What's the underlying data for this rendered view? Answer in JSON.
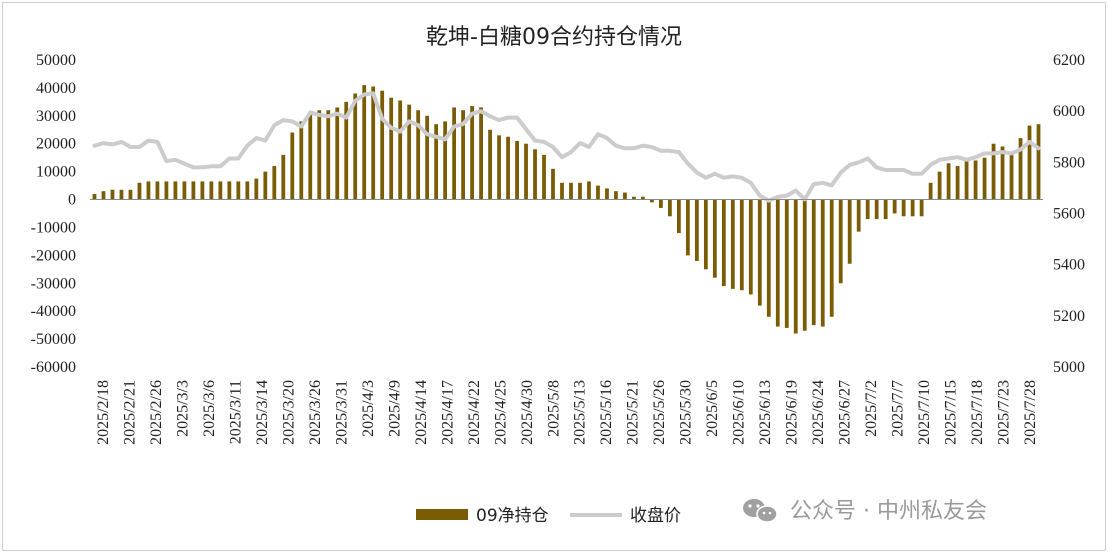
{
  "chart_data": {
    "type": "bar+line",
    "title": "乾坤-白糖09合约持仓情况",
    "left_axis": {
      "min": -60000,
      "max": 50000,
      "step": 10000,
      "ticks": [
        "50000",
        "40000",
        "30000",
        "20000",
        "10000",
        "0",
        "-10000",
        "-20000",
        "-30000",
        "-40000",
        "-50000",
        "-60000"
      ]
    },
    "right_axis": {
      "min": 5000,
      "max": 6200,
      "step": 200,
      "ticks": [
        "6200",
        "6000",
        "5800",
        "5600",
        "5400",
        "5200",
        "5000"
      ]
    },
    "x_tick_labels": [
      "2025/2/18",
      "2025/2/21",
      "2025/2/26",
      "2025/3/3",
      "2025/3/6",
      "2025/3/11",
      "2025/3/14",
      "2025/3/20",
      "2025/3/26",
      "2025/3/31",
      "2025/4/3",
      "2025/4/9",
      "2025/4/14",
      "2025/4/17",
      "2025/4/22",
      "2025/4/25",
      "2025/4/30",
      "2025/5/8",
      "2025/5/13",
      "2025/5/16",
      "2025/5/21",
      "2025/5/26",
      "2025/5/30",
      "2025/6/5",
      "2025/6/10",
      "2025/6/13",
      "2025/6/19",
      "2025/6/24",
      "2025/6/27",
      "2025/7/2",
      "2025/7/7",
      "2025/7/10",
      "2025/7/15",
      "2025/7/18",
      "2025/7/23",
      "2025/7/28"
    ],
    "series": [
      {
        "name": "09净持仓",
        "type": "bar",
        "color": "#7a5c05",
        "axis": "left",
        "values": [
          2000,
          3000,
          3500,
          3500,
          3500,
          6000,
          6500,
          6500,
          6500,
          6500,
          6500,
          6500,
          6500,
          6500,
          6500,
          6500,
          6500,
          6500,
          7500,
          10000,
          12000,
          16000,
          24000,
          28000,
          31000,
          32000,
          32000,
          33000,
          35000,
          38000,
          41000,
          40500,
          39000,
          36500,
          35500,
          34000,
          32000,
          30000,
          27000,
          28000,
          33000,
          32000,
          33500,
          33000,
          25000,
          23000,
          22500,
          21000,
          20000,
          18000,
          16000,
          11000,
          6000,
          6000,
          6000,
          6500,
          5000,
          4000,
          3000,
          2500,
          1000,
          1000,
          -1000,
          -3000,
          -6000,
          -12000,
          -20000,
          -22000,
          -25000,
          -28000,
          -31000,
          -32000,
          -32500,
          -34000,
          -38000,
          -42000,
          -45500,
          -46000,
          -48000,
          -47000,
          -45000,
          -45500,
          -42000,
          -30000,
          -23000,
          -11500,
          -7000,
          -7000,
          -7000,
          -5000,
          -6000,
          -6000,
          -6000,
          6000,
          10000,
          13000,
          12000,
          14000,
          14000,
          15000,
          20000,
          19000,
          17000,
          22000,
          26500,
          27000
        ]
      },
      {
        "name": "收盘价",
        "type": "line",
        "color": "#cccccc",
        "axis": "right",
        "values": [
          5865,
          5875,
          5870,
          5880,
          5860,
          5860,
          5885,
          5880,
          5805,
          5810,
          5795,
          5780,
          5780,
          5785,
          5785,
          5815,
          5815,
          5865,
          5895,
          5885,
          5945,
          5965,
          5960,
          5940,
          5995,
          5985,
          5980,
          5990,
          5975,
          6040,
          6065,
          6070,
          5970,
          5935,
          5920,
          5960,
          5945,
          5910,
          5900,
          5890,
          5940,
          5950,
          5990,
          6000,
          5980,
          5965,
          5975,
          5975,
          5930,
          5885,
          5880,
          5860,
          5820,
          5840,
          5875,
          5860,
          5910,
          5895,
          5865,
          5855,
          5855,
          5865,
          5860,
          5845,
          5845,
          5840,
          5795,
          5760,
          5740,
          5755,
          5740,
          5745,
          5740,
          5720,
          5670,
          5650,
          5665,
          5670,
          5690,
          5655,
          5715,
          5720,
          5710,
          5760,
          5790,
          5800,
          5815,
          5780,
          5770,
          5770,
          5770,
          5755,
          5755,
          5790,
          5810,
          5815,
          5820,
          5810,
          5820,
          5835,
          5835,
          5840,
          5835,
          5850,
          5880,
          5855
        ]
      }
    ],
    "legend": [
      {
        "label": "09净持仓",
        "kind": "bar"
      },
      {
        "label": "收盘价",
        "kind": "line"
      }
    ]
  },
  "watermark": {
    "text": "公众号 · 中州私友会",
    "icon": "wechat-icon"
  }
}
